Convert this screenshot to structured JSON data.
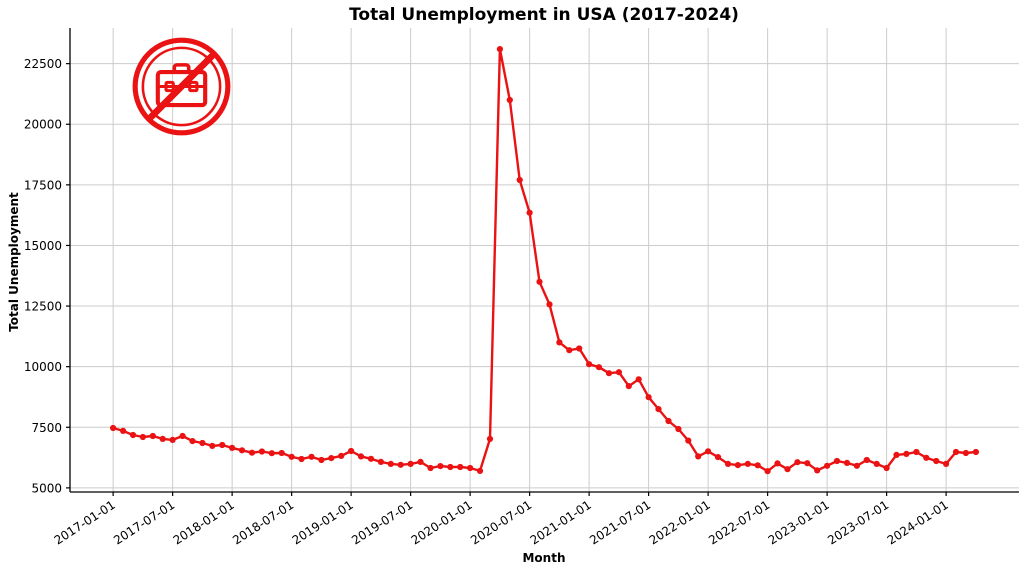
{
  "chart_data": {
    "type": "line",
    "title": "Total Unemployment in USA (2017-2024)",
    "xlabel": "Month",
    "ylabel": "Total Unemployment",
    "grid": true,
    "legend": "none",
    "line_color": "#ea1212",
    "grid_color": "#cccccc",
    "axis_color": "#000000",
    "marker": "circle",
    "y_ticks": [
      5000,
      7500,
      10000,
      12500,
      15000,
      17500,
      20000,
      22500
    ],
    "ylim": [
      4830,
      23970
    ],
    "x_tick_labels": [
      "2017-01-01",
      "2017-07-01",
      "2018-01-01",
      "2018-07-01",
      "2019-01-01",
      "2019-07-01",
      "2020-01-01",
      "2020-07-01",
      "2021-01-01",
      "2021-07-01",
      "2022-01-01",
      "2022-07-01",
      "2023-01-01",
      "2023-07-01",
      "2024-01-01"
    ],
    "x": [
      "2017-01",
      "2017-02",
      "2017-03",
      "2017-04",
      "2017-05",
      "2017-06",
      "2017-07",
      "2017-08",
      "2017-09",
      "2017-10",
      "2017-11",
      "2017-12",
      "2018-01",
      "2018-02",
      "2018-03",
      "2018-04",
      "2018-05",
      "2018-06",
      "2018-07",
      "2018-08",
      "2018-09",
      "2018-10",
      "2018-11",
      "2018-12",
      "2019-01",
      "2019-02",
      "2019-03",
      "2019-04",
      "2019-05",
      "2019-06",
      "2019-07",
      "2019-08",
      "2019-09",
      "2019-10",
      "2019-11",
      "2019-12",
      "2020-01",
      "2020-02",
      "2020-03",
      "2020-04",
      "2020-05",
      "2020-06",
      "2020-07",
      "2020-08",
      "2020-09",
      "2020-10",
      "2020-11",
      "2020-12",
      "2021-01",
      "2021-02",
      "2021-03",
      "2021-04",
      "2021-05",
      "2021-06",
      "2021-07",
      "2021-08",
      "2021-09",
      "2021-10",
      "2021-11",
      "2021-12",
      "2022-01",
      "2022-02",
      "2022-03",
      "2022-04",
      "2022-05",
      "2022-06",
      "2022-07",
      "2022-08",
      "2022-09",
      "2022-10",
      "2022-11",
      "2022-12",
      "2023-01",
      "2023-02",
      "2023-03",
      "2023-04",
      "2023-05",
      "2023-06",
      "2023-07",
      "2023-08",
      "2023-09",
      "2023-10",
      "2023-11",
      "2023-12",
      "2024-01",
      "2024-02",
      "2024-03",
      "2024-04"
    ],
    "series": [
      {
        "name": "Total Unemployment",
        "values": [
          7470,
          7350,
          7180,
          7100,
          7140,
          7020,
          6980,
          7140,
          6930,
          6850,
          6730,
          6770,
          6650,
          6550,
          6450,
          6500,
          6430,
          6440,
          6280,
          6190,
          6280,
          6150,
          6230,
          6320,
          6520,
          6300,
          6200,
          6070,
          5990,
          5950,
          5990,
          6070,
          5820,
          5900,
          5860,
          5860,
          5820,
          5700,
          7020,
          23100,
          21000,
          17700,
          16350,
          13500,
          12570,
          11000,
          10680,
          10750,
          10100,
          9980,
          9730,
          9770,
          9200,
          9480,
          8740,
          8250,
          7760,
          7430,
          6950,
          6300,
          6510,
          6270,
          5990,
          5940,
          5990,
          5930,
          5690,
          6010,
          5770,
          6060,
          6020,
          5720,
          5910,
          6110,
          6030,
          5910,
          6150,
          5990,
          5820,
          6360,
          6400,
          6480,
          6240,
          6110,
          5990,
          6480,
          6440,
          6480
        ]
      }
    ],
    "annotation_icon": {
      "name": "no-work-briefcase-prohibition",
      "color": "#ea1212"
    }
  }
}
